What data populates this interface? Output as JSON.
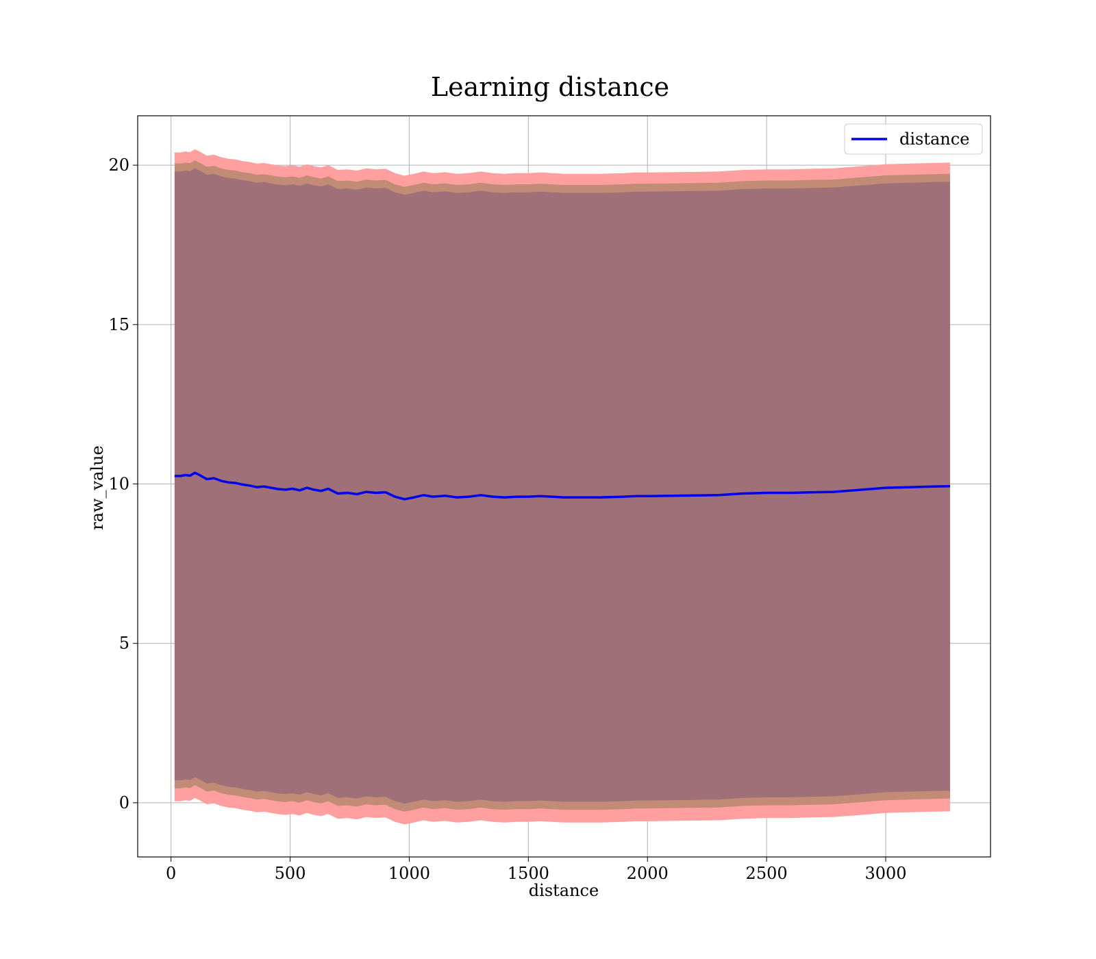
{
  "chart_data": {
    "type": "line",
    "title": "Learning distance",
    "xlabel": "distance",
    "ylabel": "raw_value",
    "xlim": [
      -140,
      3440
    ],
    "ylim": [
      -1.7,
      21.55
    ],
    "xticks": [
      0,
      500,
      1000,
      1500,
      2000,
      2500,
      3000
    ],
    "yticks": [
      0,
      5,
      10,
      15,
      20
    ],
    "grid": true,
    "legend": {
      "position": "top-right",
      "entries": [
        "distance"
      ]
    },
    "colors": {
      "line": "#0000ee",
      "band_outer": "#ff9f9f",
      "band_middle": "#c28b76",
      "band_inner": "#a07078",
      "grid": "#b0b0b0"
    },
    "series": [
      {
        "name": "distance",
        "x": [
          15,
          40,
          60,
          80,
          100,
          120,
          150,
          180,
          210,
          240,
          270,
          300,
          330,
          360,
          390,
          420,
          450,
          480,
          510,
          540,
          570,
          600,
          630,
          660,
          700,
          740,
          780,
          820,
          860,
          900,
          940,
          980,
          1020,
          1060,
          1100,
          1150,
          1200,
          1250,
          1300,
          1350,
          1400,
          1450,
          1500,
          1550,
          1600,
          1650,
          1700,
          1800,
          1900,
          1950,
          2000,
          2100,
          2200,
          2300,
          2400,
          2500,
          2600,
          2700,
          2780,
          2900,
          3000,
          3100,
          3200,
          3270
        ],
        "values": [
          10.25,
          10.25,
          10.28,
          10.26,
          10.35,
          10.28,
          10.15,
          10.18,
          10.1,
          10.05,
          10.03,
          9.98,
          9.95,
          9.9,
          9.92,
          9.88,
          9.84,
          9.82,
          9.85,
          9.8,
          9.88,
          9.82,
          9.78,
          9.85,
          9.7,
          9.72,
          9.68,
          9.75,
          9.72,
          9.74,
          9.6,
          9.52,
          9.58,
          9.65,
          9.6,
          9.63,
          9.58,
          9.6,
          9.65,
          9.6,
          9.58,
          9.6,
          9.6,
          9.62,
          9.6,
          9.58,
          9.58,
          9.58,
          9.6,
          9.62,
          9.62,
          9.63,
          9.64,
          9.65,
          9.7,
          9.72,
          9.72,
          9.74,
          9.75,
          9.82,
          9.88,
          9.9,
          9.92,
          9.93
        ]
      }
    ],
    "bands": [
      {
        "name": "outer",
        "lower_offset": -10.2,
        "upper_offset": 10.15
      },
      {
        "name": "middle",
        "lower_offset": -9.8,
        "upper_offset": 9.8
      },
      {
        "name": "inner",
        "lower_offset": -9.55,
        "upper_offset": 9.55
      }
    ]
  }
}
